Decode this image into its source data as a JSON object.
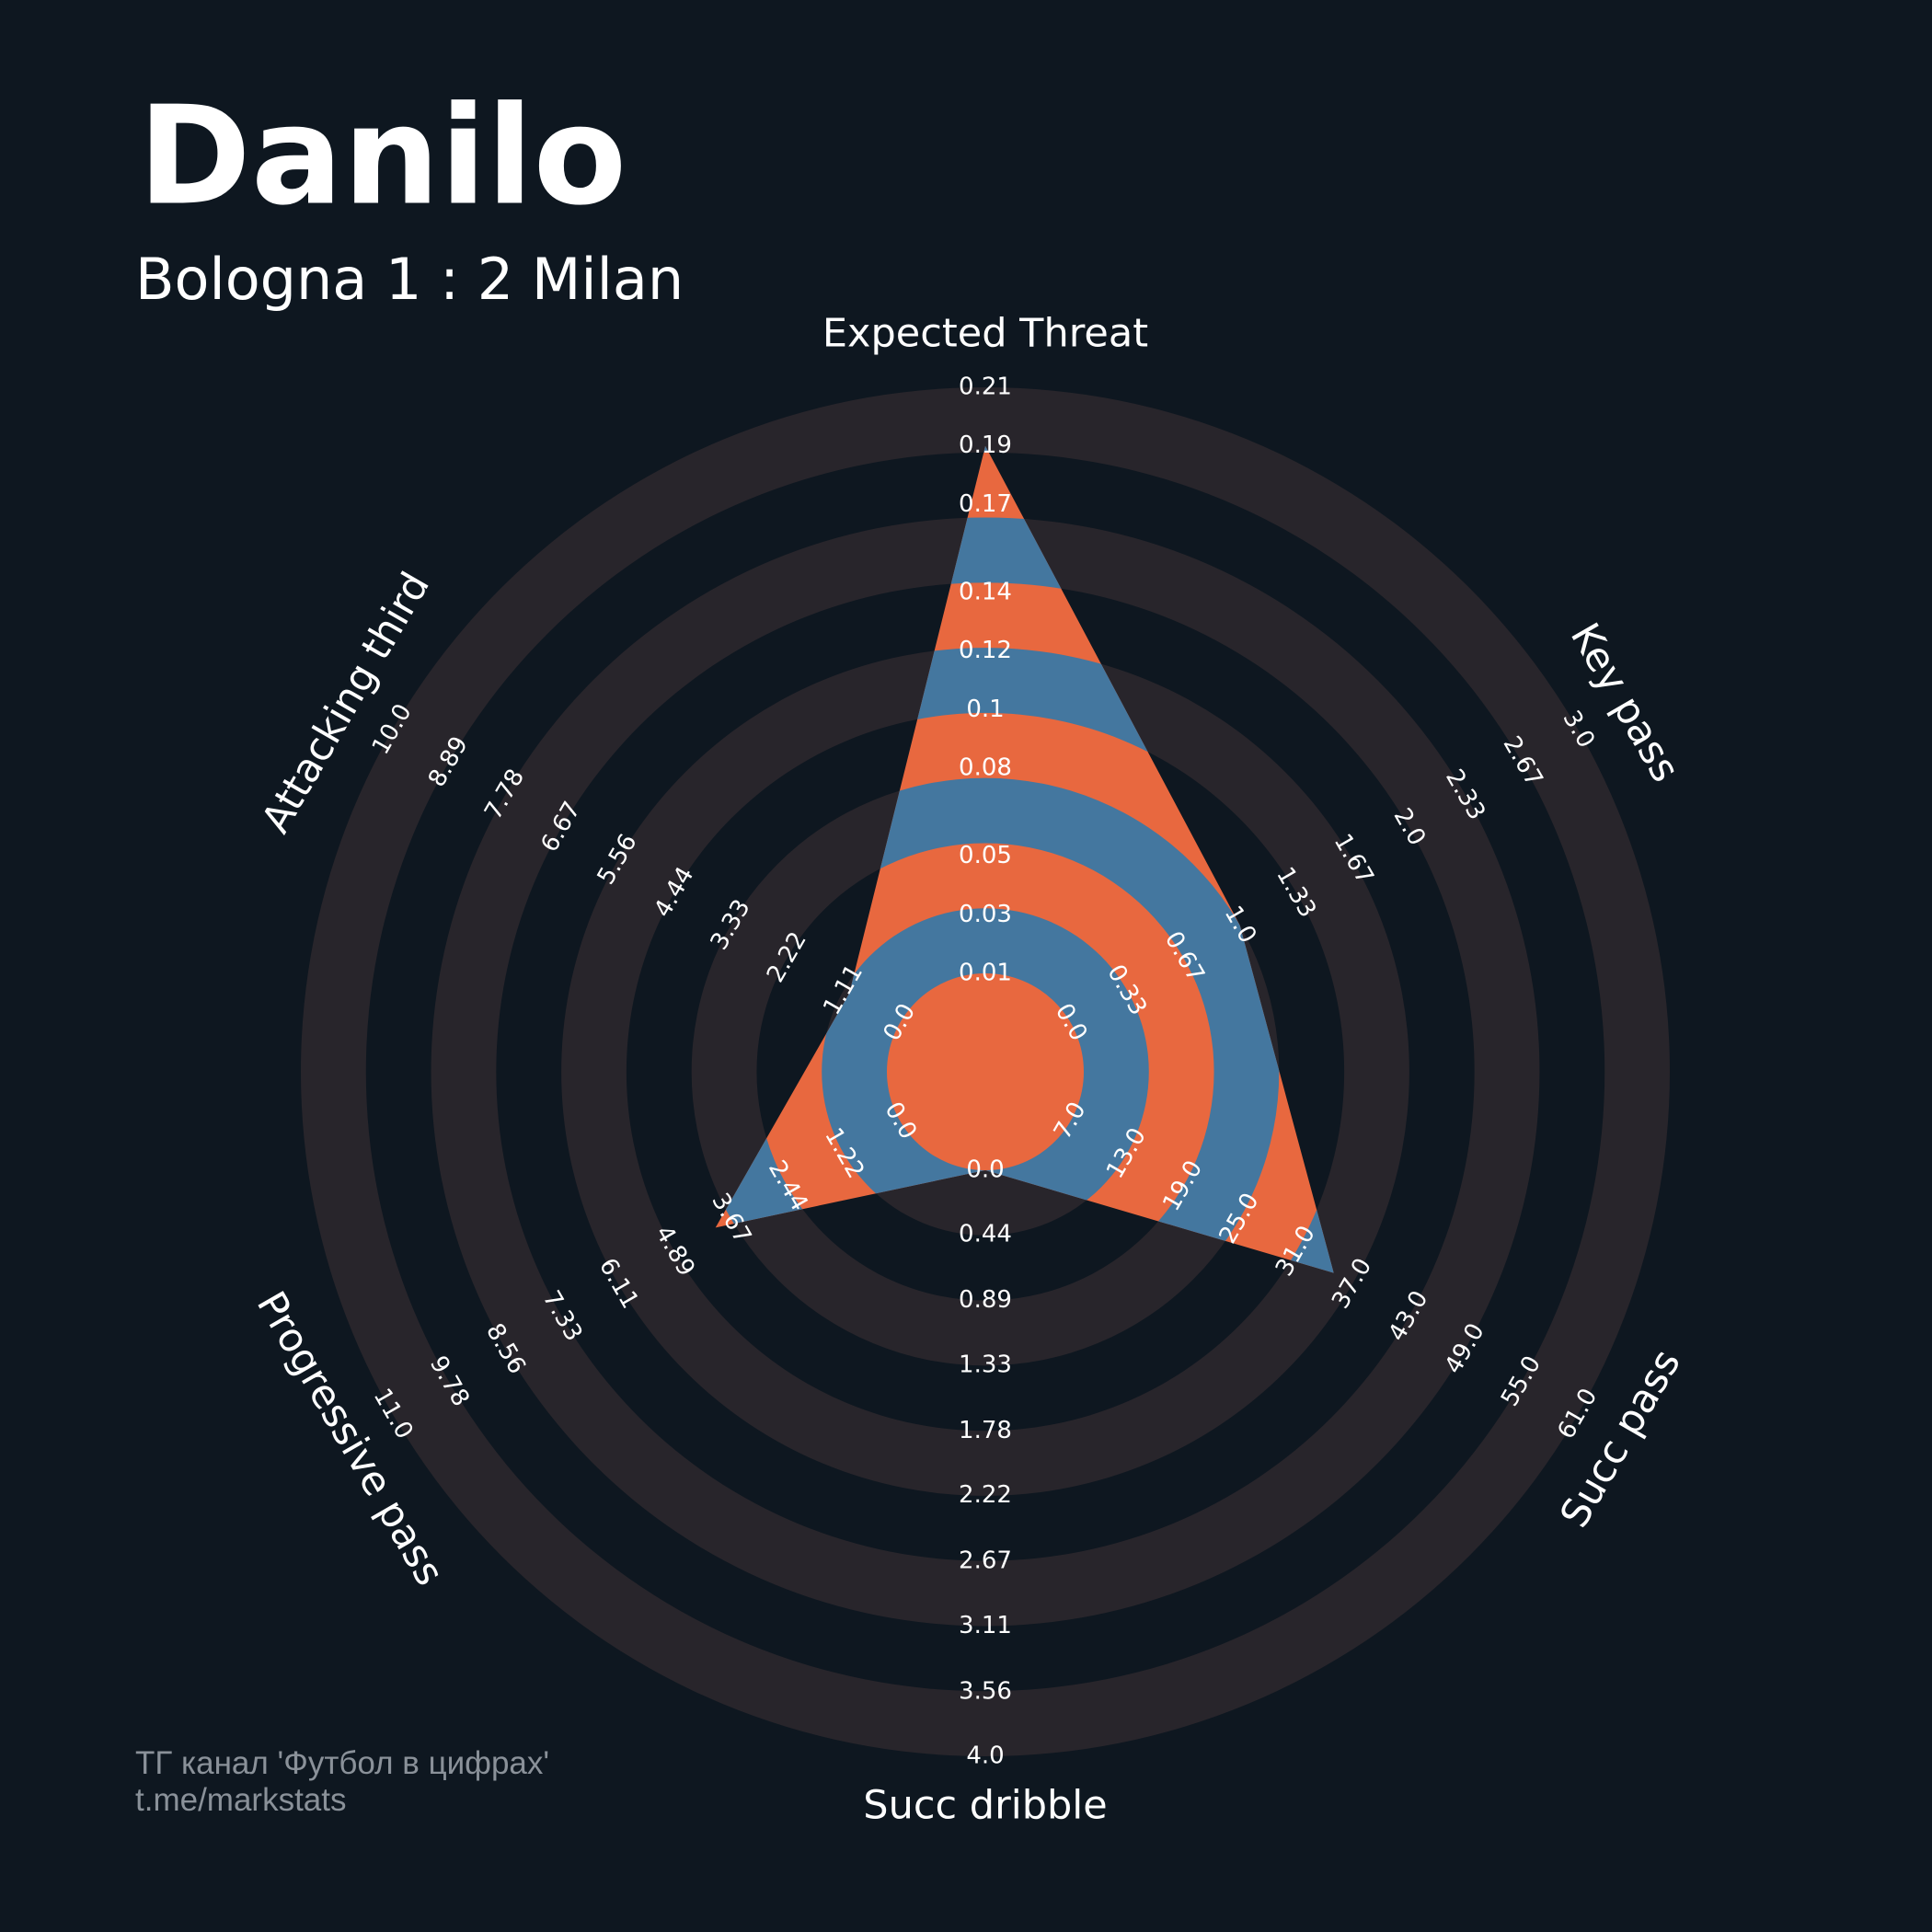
{
  "chart_data": {
    "type": "radar",
    "title": "Danilo",
    "subtitle": "Bologna 1 : 2 Milan",
    "annotations": [
      "ТГ канал 'Футбол в цифрах'",
      "t.me/markstats"
    ],
    "params": [
      "Expected Threat",
      "Key pass",
      "Succ pass",
      "Succ dribble",
      "Progressive pass",
      "Attacking third"
    ],
    "values": [
      0.19,
      1,
      35,
      0,
      4,
      1
    ],
    "ranges": [
      [
        0.01,
        0.21
      ],
      [
        0,
        3
      ],
      [
        7,
        61
      ],
      [
        0,
        4
      ],
      [
        0,
        11
      ],
      [
        0,
        10
      ]
    ],
    "ticks": [
      [
        0.01,
        0.03,
        0.05,
        0.08,
        0.1,
        0.12,
        0.14,
        0.17,
        0.19,
        0.21
      ],
      [
        {
          "value": 0,
          "label": "0.0"
        },
        0.33,
        0.67,
        {
          "value": 1,
          "label": "1.0"
        },
        1.33,
        1.67,
        {
          "value": 2,
          "label": "2.0"
        },
        2.33,
        2.67,
        {
          "value": 3,
          "label": "3.0"
        }
      ],
      [
        {
          "value": 7,
          "label": "7.0"
        },
        {
          "value": 13,
          "label": "13.0"
        },
        {
          "value": 19,
          "label": "19.0"
        },
        {
          "value": 25,
          "label": "25.0"
        },
        {
          "value": 31,
          "label": "31.0"
        },
        {
          "value": 37,
          "label": "37.0"
        },
        {
          "value": 43,
          "label": "43.0"
        },
        {
          "value": 49,
          "label": "49.0"
        },
        {
          "value": 55,
          "label": "55.0"
        },
        {
          "value": 61,
          "label": "61.0"
        }
      ],
      [
        {
          "value": 0,
          "label": "0.0"
        },
        0.44,
        0.89,
        1.33,
        1.78,
        2.22,
        2.67,
        3.11,
        3.56,
        {
          "value": 4,
          "label": "4.0"
        }
      ],
      [
        {
          "value": 0,
          "label": "0.0"
        },
        1.22,
        2.44,
        3.67,
        4.89,
        6.11,
        7.33,
        8.56,
        9.78,
        {
          "value": 11,
          "label": "11.0"
        }
      ],
      [
        {
          "value": 0,
          "label": "0.0"
        },
        1.11,
        2.22,
        3.33,
        4.44,
        5.56,
        6.67,
        7.78,
        8.89,
        {
          "value": 10,
          "label": "10.0"
        }
      ]
    ],
    "colors": {
      "background": "#0e1720",
      "rings": "#28252b",
      "inside_rings": "#44779f",
      "inside_gaps": "#e8683f"
    }
  }
}
